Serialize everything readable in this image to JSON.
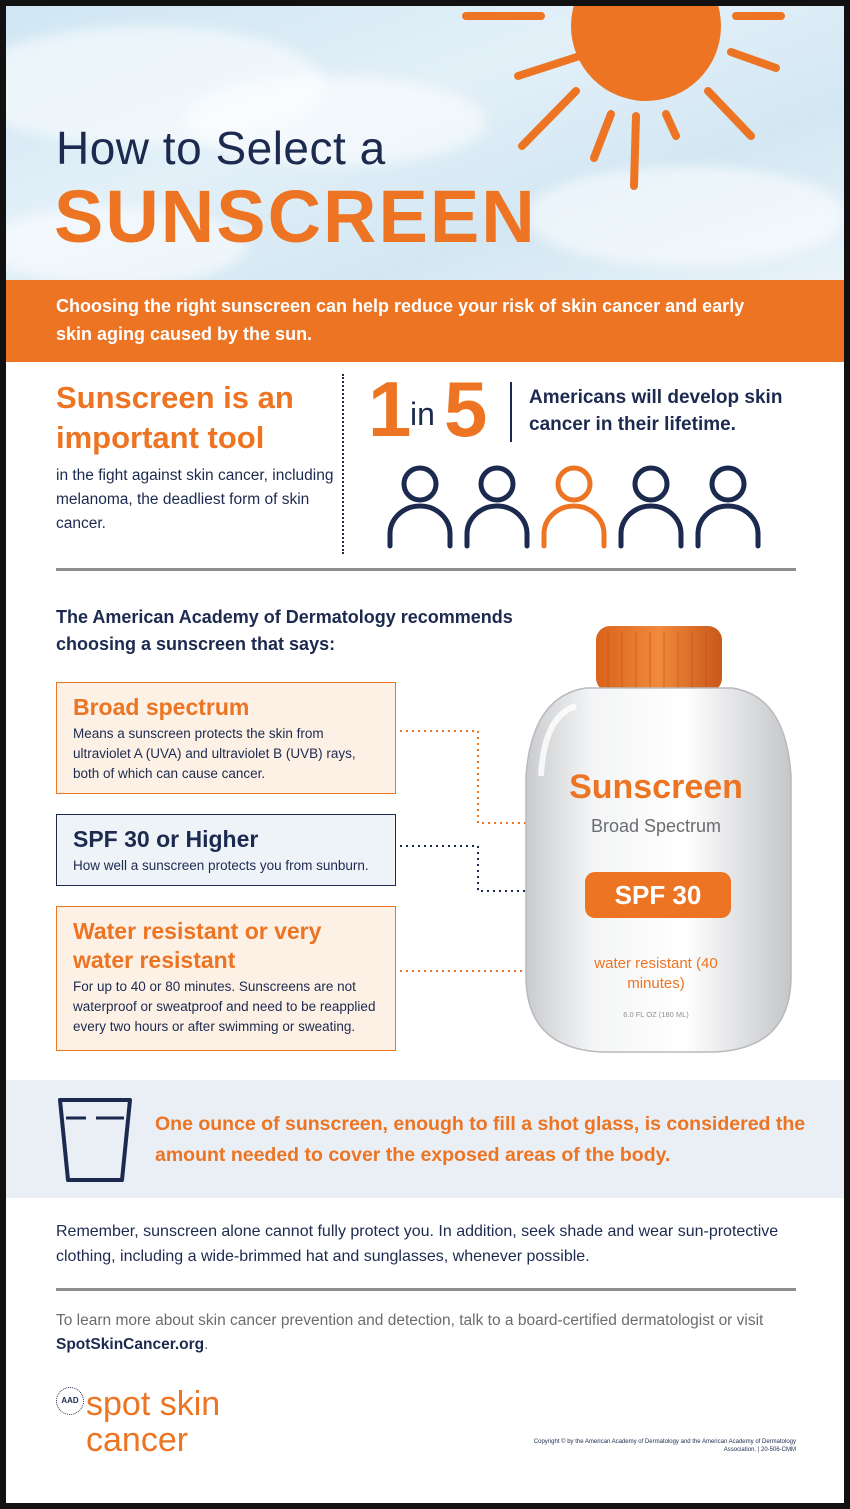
{
  "header": {
    "title_line1": "How to Select a",
    "title_line2": "SUNSCREEN"
  },
  "intro": {
    "text": "Choosing the right sunscreen can help reduce your risk of skin cancer and early skin aging caused by the sun."
  },
  "tool": {
    "heading": "Sunscreen is an important tool",
    "body": "in the fight against skin cancer, including melanoma, the deadliest form of skin cancer."
  },
  "stat": {
    "one": "1",
    "in": "in",
    "five": "5",
    "text": "Americans will develop skin cancer in their lifetime.",
    "highlight_person_index": 3,
    "total_people": 5
  },
  "recommend": {
    "heading": "The American Academy of Dermatology recommends choosing a sunscreen that says:",
    "items": [
      {
        "title": "Broad spectrum",
        "body": "Means a sunscreen protects the skin from ultraviolet A (UVA) and ultraviolet B (UVB) rays, both of which can cause cancer."
      },
      {
        "title": "SPF 30 or Higher",
        "body": "How well a sunscreen protects you from sunburn."
      },
      {
        "title": "Water resistant or very water resistant",
        "body": "For up to 40 or 80 minutes. Sunscreens are not waterproof or sweatproof and need to be reapplied every two hours or after swimming or sweating."
      }
    ]
  },
  "bottle": {
    "name": "Sunscreen",
    "spectrum": "Broad Spectrum",
    "spf": "SPF 30",
    "water": "water resistant (40 minutes)",
    "volume": "6.0 FL OZ (180 ML)"
  },
  "shot_glass": {
    "text": "One ounce of sunscreen, enough to fill a shot glass, is considered the amount needed to cover the exposed areas of the body."
  },
  "remember": {
    "text": "Remember, sunscreen alone cannot fully protect you. In addition, seek shade and wear sun-protective clothing, including a wide-brimmed hat and sunglasses, whenever possible."
  },
  "learn_more": {
    "text": "To learn more about skin cancer prevention and detection, talk to a board-certified dermatologist or visit ",
    "link": "SpotSkinCancer.org",
    "end": "."
  },
  "footer": {
    "logo_badge": "AAD",
    "logo_line1": "spot skin",
    "logo_line2": "cancer",
    "copyright": "Copyright © by the American Academy of Dermatology and the American Academy of Dermatology Association. | 20-506-CMM"
  },
  "colors": {
    "orange": "#ec7423",
    "navy": "#1c2a4f",
    "gray": "#8d8f92",
    "sky": "#d3e7f3"
  }
}
